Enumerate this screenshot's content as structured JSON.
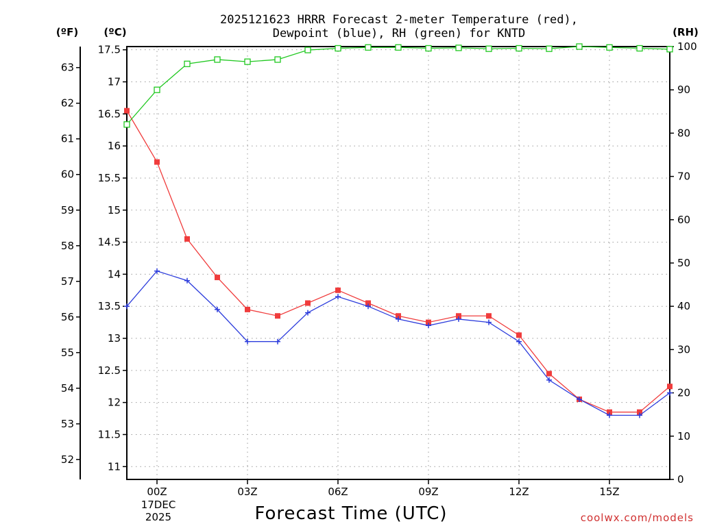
{
  "colors": {
    "temperature": "#f03c3c",
    "dewpoint": "#2c3cdc",
    "rh": "#20c820",
    "grid": "#9a9a9a",
    "credit": "#d03030"
  },
  "credit": "coolwx.com/models",
  "chart_data": {
    "type": "line",
    "title": [
      "2025121623 HRRR Forecast 2-meter Temperature (red),",
      "Dewpoint (blue), RH (green) for KNTD"
    ],
    "xlabel": "Forecast Time (UTC)",
    "x_hours": [
      23,
      24,
      25,
      26,
      27,
      28,
      29,
      30,
      31,
      32,
      33,
      34,
      35,
      36,
      37,
      38,
      39,
      40,
      41
    ],
    "xlim": [
      23,
      41
    ],
    "x_ticks": [
      {
        "hour": 24,
        "label": "00Z"
      },
      {
        "hour": 27,
        "label": "03Z"
      },
      {
        "hour": 30,
        "label": "06Z"
      },
      {
        "hour": 33,
        "label": "09Z"
      },
      {
        "hour": 36,
        "label": "12Z"
      },
      {
        "hour": 39,
        "label": "15Z"
      }
    ],
    "date_label": [
      "17DEC",
      "2025"
    ],
    "left_axis_c": {
      "unit_label": "(ºC)",
      "ylim": [
        10.8,
        17.55
      ],
      "ticks": [
        11,
        11.5,
        12,
        12.5,
        13,
        13.5,
        14,
        14.5,
        15,
        15.5,
        16,
        16.5,
        17,
        17.5
      ],
      "tick_labels": [
        "11",
        "11.5",
        "12",
        "12.5",
        "13",
        "13.5",
        "14",
        "14.5",
        "15",
        "15.5",
        "16",
        "16.5",
        "17",
        "17.5"
      ]
    },
    "left_axis_f": {
      "unit_label": "(ºF)",
      "ticks": [
        52,
        53,
        54,
        55,
        56,
        57,
        58,
        59,
        60,
        61,
        62,
        63
      ],
      "tick_labels": [
        "52",
        "53",
        "54",
        "55",
        "56",
        "57",
        "58",
        "59",
        "60",
        "61",
        "62",
        "63"
      ]
    },
    "right_axis_rh": {
      "unit_label": "(RH)",
      "ylim": [
        0,
        100
      ],
      "ticks": [
        0,
        10,
        20,
        30,
        40,
        50,
        60,
        70,
        80,
        90,
        100
      ],
      "tick_labels": [
        "0",
        "10",
        "20",
        "30",
        "40",
        "50",
        "60",
        "70",
        "80",
        "90",
        "100"
      ]
    },
    "series": [
      {
        "name": "Temperature (°C)",
        "color": "temperature",
        "marker": "filled-square",
        "values": [
          16.55,
          15.75,
          14.55,
          13.95,
          13.45,
          13.35,
          13.55,
          13.75,
          13.55,
          13.35,
          13.25,
          13.35,
          13.35,
          13.05,
          12.45,
          12.05,
          11.85,
          11.85,
          12.25
        ]
      },
      {
        "name": "Dewpoint (°C)",
        "color": "dewpoint",
        "marker": "plus",
        "values": [
          13.5,
          14.05,
          13.9,
          13.45,
          12.95,
          12.95,
          13.4,
          13.65,
          13.5,
          13.3,
          13.2,
          13.3,
          13.25,
          12.95,
          12.35,
          12.05,
          11.8,
          11.8,
          12.15
        ]
      },
      {
        "name": "RH (%)",
        "color": "rh",
        "marker": "open-square",
        "axis": "right",
        "values": [
          82,
          90,
          96,
          97,
          96.5,
          97,
          99.2,
          99.6,
          99.8,
          99.8,
          99.6,
          99.7,
          99.5,
          99.6,
          99.5,
          100,
          99.8,
          99.6,
          99.4
        ]
      }
    ]
  }
}
